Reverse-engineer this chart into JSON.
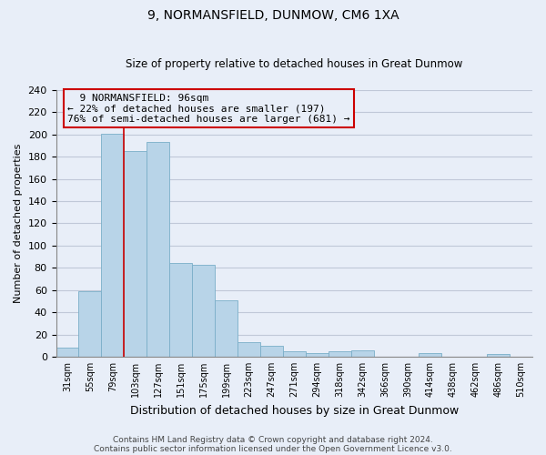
{
  "title": "9, NORMANSFIELD, DUNMOW, CM6 1XA",
  "subtitle": "Size of property relative to detached houses in Great Dunmow",
  "xlabel": "Distribution of detached houses by size in Great Dunmow",
  "ylabel": "Number of detached properties",
  "bar_labels": [
    "31sqm",
    "55sqm",
    "79sqm",
    "103sqm",
    "127sqm",
    "151sqm",
    "175sqm",
    "199sqm",
    "223sqm",
    "247sqm",
    "271sqm",
    "294sqm",
    "318sqm",
    "342sqm",
    "366sqm",
    "390sqm",
    "414sqm",
    "438sqm",
    "462sqm",
    "486sqm",
    "510sqm"
  ],
  "bar_values": [
    8,
    59,
    201,
    185,
    193,
    84,
    83,
    51,
    13,
    10,
    5,
    3,
    5,
    6,
    0,
    0,
    3,
    0,
    0,
    2,
    0
  ],
  "bar_color": "#b8d4e8",
  "bar_edge_color": "#7aaec8",
  "vline_x_index": 2.5,
  "vline_color": "#cc0000",
  "ylim": [
    0,
    240
  ],
  "yticks": [
    0,
    20,
    40,
    60,
    80,
    100,
    120,
    140,
    160,
    180,
    200,
    220,
    240
  ],
  "annotation_title": "9 NORMANSFIELD: 96sqm",
  "annotation_line1": "← 22% of detached houses are smaller (197)",
  "annotation_line2": "76% of semi-detached houses are larger (681) →",
  "footer1": "Contains HM Land Registry data © Crown copyright and database right 2024.",
  "footer2": "Contains public sector information licensed under the Open Government Licence v3.0.",
  "bg_color": "#e8eef8",
  "plot_bg_color": "#e8eef8",
  "grid_color": "#c0c8d8",
  "title_fontsize": 10,
  "subtitle_fontsize": 8.5,
  "xlabel_fontsize": 9,
  "ylabel_fontsize": 8
}
